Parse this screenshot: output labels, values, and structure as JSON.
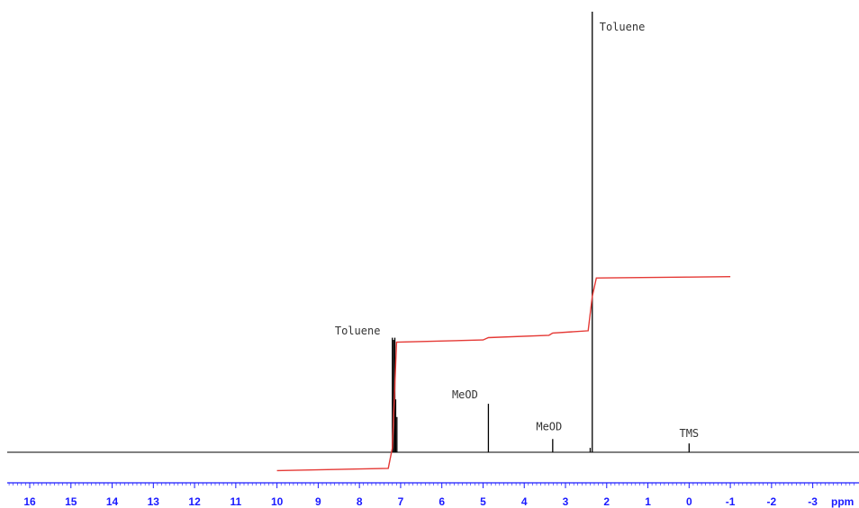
{
  "chart_data": {
    "type": "line",
    "title": "",
    "xlabel": "ppm",
    "ylabel": "",
    "xlim": [
      16.5,
      -4.0
    ],
    "x_reversed": true,
    "grid": false,
    "legend": "none",
    "axis_color": "#1a1aff",
    "spectrum_color": "#000000",
    "integral_color": "#e53935",
    "ticks": [
      {
        "value": 16,
        "label": "16"
      },
      {
        "value": 15,
        "label": "15"
      },
      {
        "value": 14,
        "label": "14"
      },
      {
        "value": 13,
        "label": "13"
      },
      {
        "value": 12,
        "label": "12"
      },
      {
        "value": 11,
        "label": "11"
      },
      {
        "value": 10,
        "label": "10"
      },
      {
        "value": 9,
        "label": "9"
      },
      {
        "value": 8,
        "label": "8"
      },
      {
        "value": 7,
        "label": "7"
      },
      {
        "value": 6,
        "label": "6"
      },
      {
        "value": 5,
        "label": "5"
      },
      {
        "value": 4,
        "label": "4"
      },
      {
        "value": 3,
        "label": "3"
      },
      {
        "value": 2,
        "label": "2"
      },
      {
        "value": 1,
        "label": "1"
      },
      {
        "value": 0,
        "label": "0"
      },
      {
        "value": -1,
        "label": "-1"
      },
      {
        "value": -2,
        "label": "-2"
      },
      {
        "value": -3,
        "label": "-3"
      }
    ],
    "peaks": [
      {
        "ppm": 7.2,
        "height": 0.26,
        "label": ""
      },
      {
        "ppm": 7.17,
        "height": 0.255,
        "label": "Toluene"
      },
      {
        "ppm": 7.14,
        "height": 0.26,
        "label": ""
      },
      {
        "ppm": 7.12,
        "height": 0.12,
        "label": ""
      },
      {
        "ppm": 7.09,
        "height": 0.08,
        "label": ""
      },
      {
        "ppm": 4.87,
        "height": 0.11,
        "label": "MeOD"
      },
      {
        "ppm": 3.31,
        "height": 0.03,
        "label": "MeOD"
      },
      {
        "ppm": 2.35,
        "height": 1.0,
        "label": "Toluene"
      },
      {
        "ppm": 2.4,
        "height": 0.01,
        "label": ""
      },
      {
        "ppm": 0.0,
        "height": 0.02,
        "label": "TMS"
      }
    ],
    "integral": {
      "x": [
        10.0,
        7.3,
        7.2,
        7.1,
        5.0,
        4.87,
        3.4,
        3.31,
        2.45,
        2.35,
        2.25,
        0.0,
        -1.0
      ],
      "y": [
        -0.04,
        -0.035,
        0.01,
        0.24,
        0.245,
        0.25,
        0.255,
        0.26,
        0.265,
        0.34,
        0.38,
        0.382,
        0.383
      ]
    }
  }
}
